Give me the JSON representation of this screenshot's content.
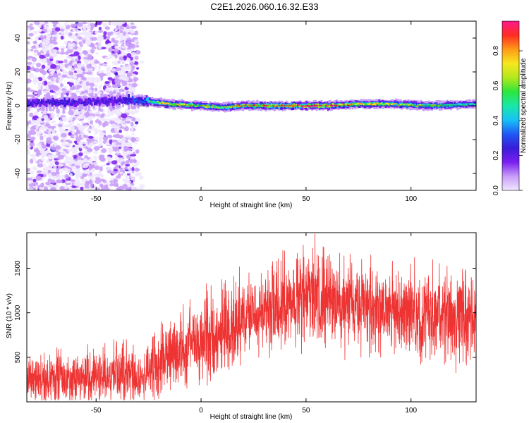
{
  "title": "C2E1.2026.060.16.32.E33",
  "chart_data": [
    {
      "type": "heatmap",
      "name": "spectrogram",
      "xlabel": "Height of straight line (km)",
      "ylabel": "Frequency (Hz)",
      "xlim": [
        -83,
        131
      ],
      "ylim": [
        -50,
        50
      ],
      "xticks": [
        -50,
        0,
        50,
        100
      ],
      "yticks": [
        -40,
        -20,
        0,
        20,
        40
      ],
      "colorbar": {
        "label": "Normalized spectral amplitude",
        "range": [
          0,
          0.97
        ],
        "ticks": [
          0.0,
          0.2,
          0.4,
          0.6,
          0.8
        ],
        "tick_labels": [
          "0.0",
          "0.2",
          "0.4",
          "0.6",
          "0.8"
        ],
        "colormap": [
          "#f0e8ff",
          "#c89cf8",
          "#7a1ff0",
          "#3a1bd8",
          "#1f59f5",
          "#17c2f5",
          "#18e8a8",
          "#2de63c",
          "#b4e81c",
          "#f6e81f",
          "#ff9a17",
          "#ff2d22",
          "#ff1a8a"
        ]
      },
      "ridge": [
        {
          "x": -83,
          "f": 2,
          "amp": 0.3
        },
        {
          "x": -60,
          "f": 2,
          "amp": 0.32
        },
        {
          "x": -40,
          "f": 3,
          "amp": 0.3
        },
        {
          "x": -28,
          "f": 3,
          "amp": 0.45
        },
        {
          "x": -15,
          "f": 1,
          "amp": 0.7
        },
        {
          "x": 0,
          "f": 0,
          "amp": 0.65
        },
        {
          "x": 10,
          "f": -1,
          "amp": 0.6
        },
        {
          "x": 20,
          "f": 0,
          "amp": 0.7
        },
        {
          "x": 35,
          "f": 0,
          "amp": 0.75
        },
        {
          "x": 48,
          "f": 0,
          "amp": 0.9
        },
        {
          "x": 60,
          "f": 0,
          "amp": 0.85
        },
        {
          "x": 75,
          "f": 1,
          "amp": 0.7
        },
        {
          "x": 90,
          "f": 1,
          "amp": 0.65
        },
        {
          "x": 110,
          "f": 0,
          "amp": 0.55
        },
        {
          "x": 131,
          "f": 1,
          "amp": 0.45
        }
      ]
    },
    {
      "type": "line",
      "name": "snr",
      "xlabel": "Height of straight line (km)",
      "ylabel": "SNR (10 * v/v)",
      "xlim": [
        -83,
        131
      ],
      "ylim": [
        0,
        1900
      ],
      "xticks": [
        -50,
        0,
        50,
        100
      ],
      "yticks": [
        500,
        1000,
        1500
      ],
      "color": "#ee3333",
      "envelope": {
        "x": [
          -83,
          -60,
          -45,
          -38,
          -28,
          -22,
          -10,
          0,
          20,
          40,
          50,
          60,
          80,
          100,
          120,
          131
        ],
        "mean": [
          250,
          270,
          300,
          350,
          220,
          450,
          580,
          720,
          920,
          1080,
          1170,
          1120,
          1060,
          1000,
          960,
          930
        ],
        "spread": [
          180,
          190,
          200,
          220,
          160,
          260,
          280,
          300,
          300,
          320,
          330,
          320,
          320,
          320,
          330,
          330
        ]
      }
    }
  ]
}
